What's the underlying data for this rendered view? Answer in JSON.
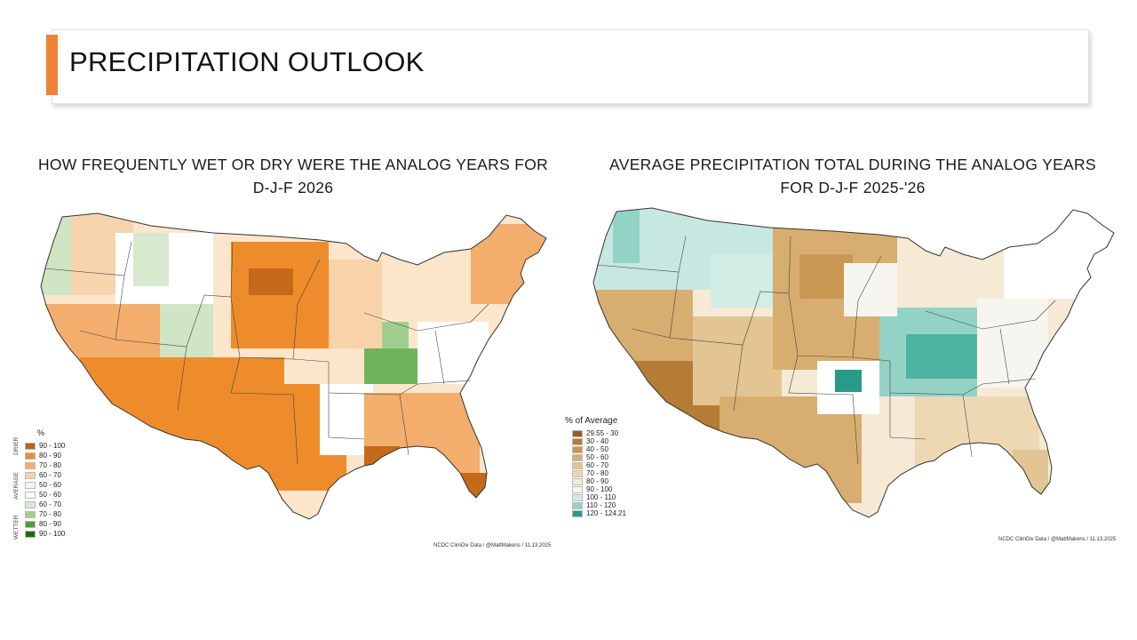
{
  "page": {
    "title": "PRECIPITATION OUTLOOK",
    "accent_color": "#ee8338"
  },
  "left_map": {
    "title_line1": "HOW FREQUENTLY WET OR DRY WERE THE ANALOG YEARS FOR",
    "title_line2": "D-J-F 2026",
    "legend_header": "%",
    "legend_side_labels": [
      "DRIER",
      "AVERAGE",
      "WETTER"
    ],
    "legend": [
      {
        "label": "90 - 100",
        "color": "#b8650f"
      },
      {
        "label": "80 - 90",
        "color": "#ee8c2c"
      },
      {
        "label": "70 - 80",
        "color": "#f3ad6c"
      },
      {
        "label": "60 - 70",
        "color": "#f8d3a9"
      },
      {
        "label": "50 - 60",
        "color": "#fdf2e4"
      },
      {
        "label": "50 - 60",
        "color": "#ffffff"
      },
      {
        "label": "60 - 70",
        "color": "#d7ead0"
      },
      {
        "label": "70 - 80",
        "color": "#9fcf8f"
      },
      {
        "label": "80 - 90",
        "color": "#4f9e3b"
      },
      {
        "label": "90 - 100",
        "color": "#1f6c17"
      }
    ],
    "credit": "NCDC ClimDiv Data / @MattMakens / 11.13.2025"
  },
  "right_map": {
    "title_line1": "AVERAGE PRECIPITATION TOTAL DURING THE ANALOG YEARS",
    "title_line2": "FOR D-J-F 2025-'26",
    "legend_header": "% of Average",
    "legend": [
      {
        "label": "29.55 - 30",
        "color": "#9a5b1e"
      },
      {
        "label": "30 - 40",
        "color": "#b57c35"
      },
      {
        "label": "40 - 50",
        "color": "#c99752"
      },
      {
        "label": "50 - 60",
        "color": "#d7ae70"
      },
      {
        "label": "60 - 70",
        "color": "#e2c592"
      },
      {
        "label": "70 - 80",
        "color": "#ecd8b3"
      },
      {
        "label": "80 - 90",
        "color": "#f4ead6"
      },
      {
        "label": "90 - 100",
        "color": "#f7f5ef"
      },
      {
        "label": "100 - 110",
        "color": "#d2ece6"
      },
      {
        "label": "110 - 120",
        "color": "#93d3c6"
      },
      {
        "label": "120 - 124.21",
        "color": "#2a9a88"
      }
    ],
    "credit": "NCDC ClimDiv Data / @MattMakens / 11.13.2025"
  }
}
